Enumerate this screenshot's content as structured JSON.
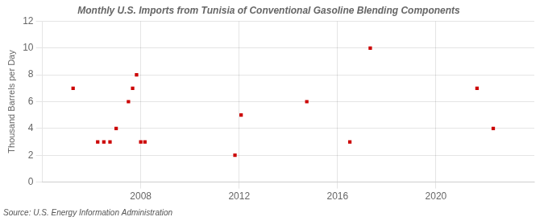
{
  "chart_data": {
    "type": "scatter",
    "title": "Monthly U.S. Imports from Tunisia of Conventional Gasoline Blending Components",
    "y_label": "Thousand Barrels per Day",
    "annotations": [
      "Source: U.S. Energy Information Administration"
    ],
    "x": [
      2005.25,
      2006.25,
      2006.5,
      2006.75,
      2007.0,
      2007.5,
      2007.67,
      2007.83,
      2008.0,
      2008.17,
      2011.83,
      2012.08,
      2014.75,
      2016.5,
      2017.33,
      2021.67,
      2022.33
    ],
    "values": [
      7,
      3,
      3,
      3,
      4,
      6,
      7,
      8,
      3,
      3,
      2,
      5,
      6,
      3,
      10,
      7,
      4
    ],
    "color": "#cc0000",
    "marker": "square",
    "xlim": [
      2004,
      2024
    ],
    "ylim": [
      0,
      12
    ],
    "xticks": [
      2008,
      2012,
      2016,
      2020
    ],
    "yticks": [
      0,
      2,
      4,
      6,
      8,
      10,
      12
    ],
    "grid": true
  }
}
